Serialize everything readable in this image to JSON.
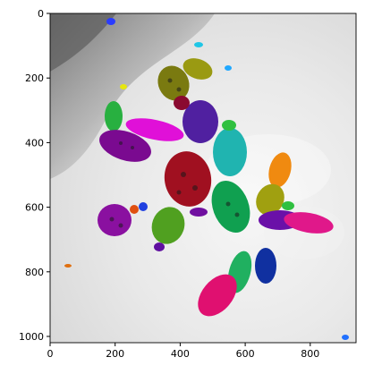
{
  "figure": {
    "x_ticks": [
      "0",
      "200",
      "400",
      "600",
      "800"
    ],
    "y_ticks": [
      "0",
      "200",
      "400",
      "600",
      "800",
      "1000"
    ],
    "x_range": [
      0,
      940
    ],
    "y_range": [
      0,
      1020
    ],
    "y_axis_inverted": true
  },
  "image": {
    "content": "masked-insects-segmentation-overlay",
    "background": "grey-white mottled surface"
  }
}
